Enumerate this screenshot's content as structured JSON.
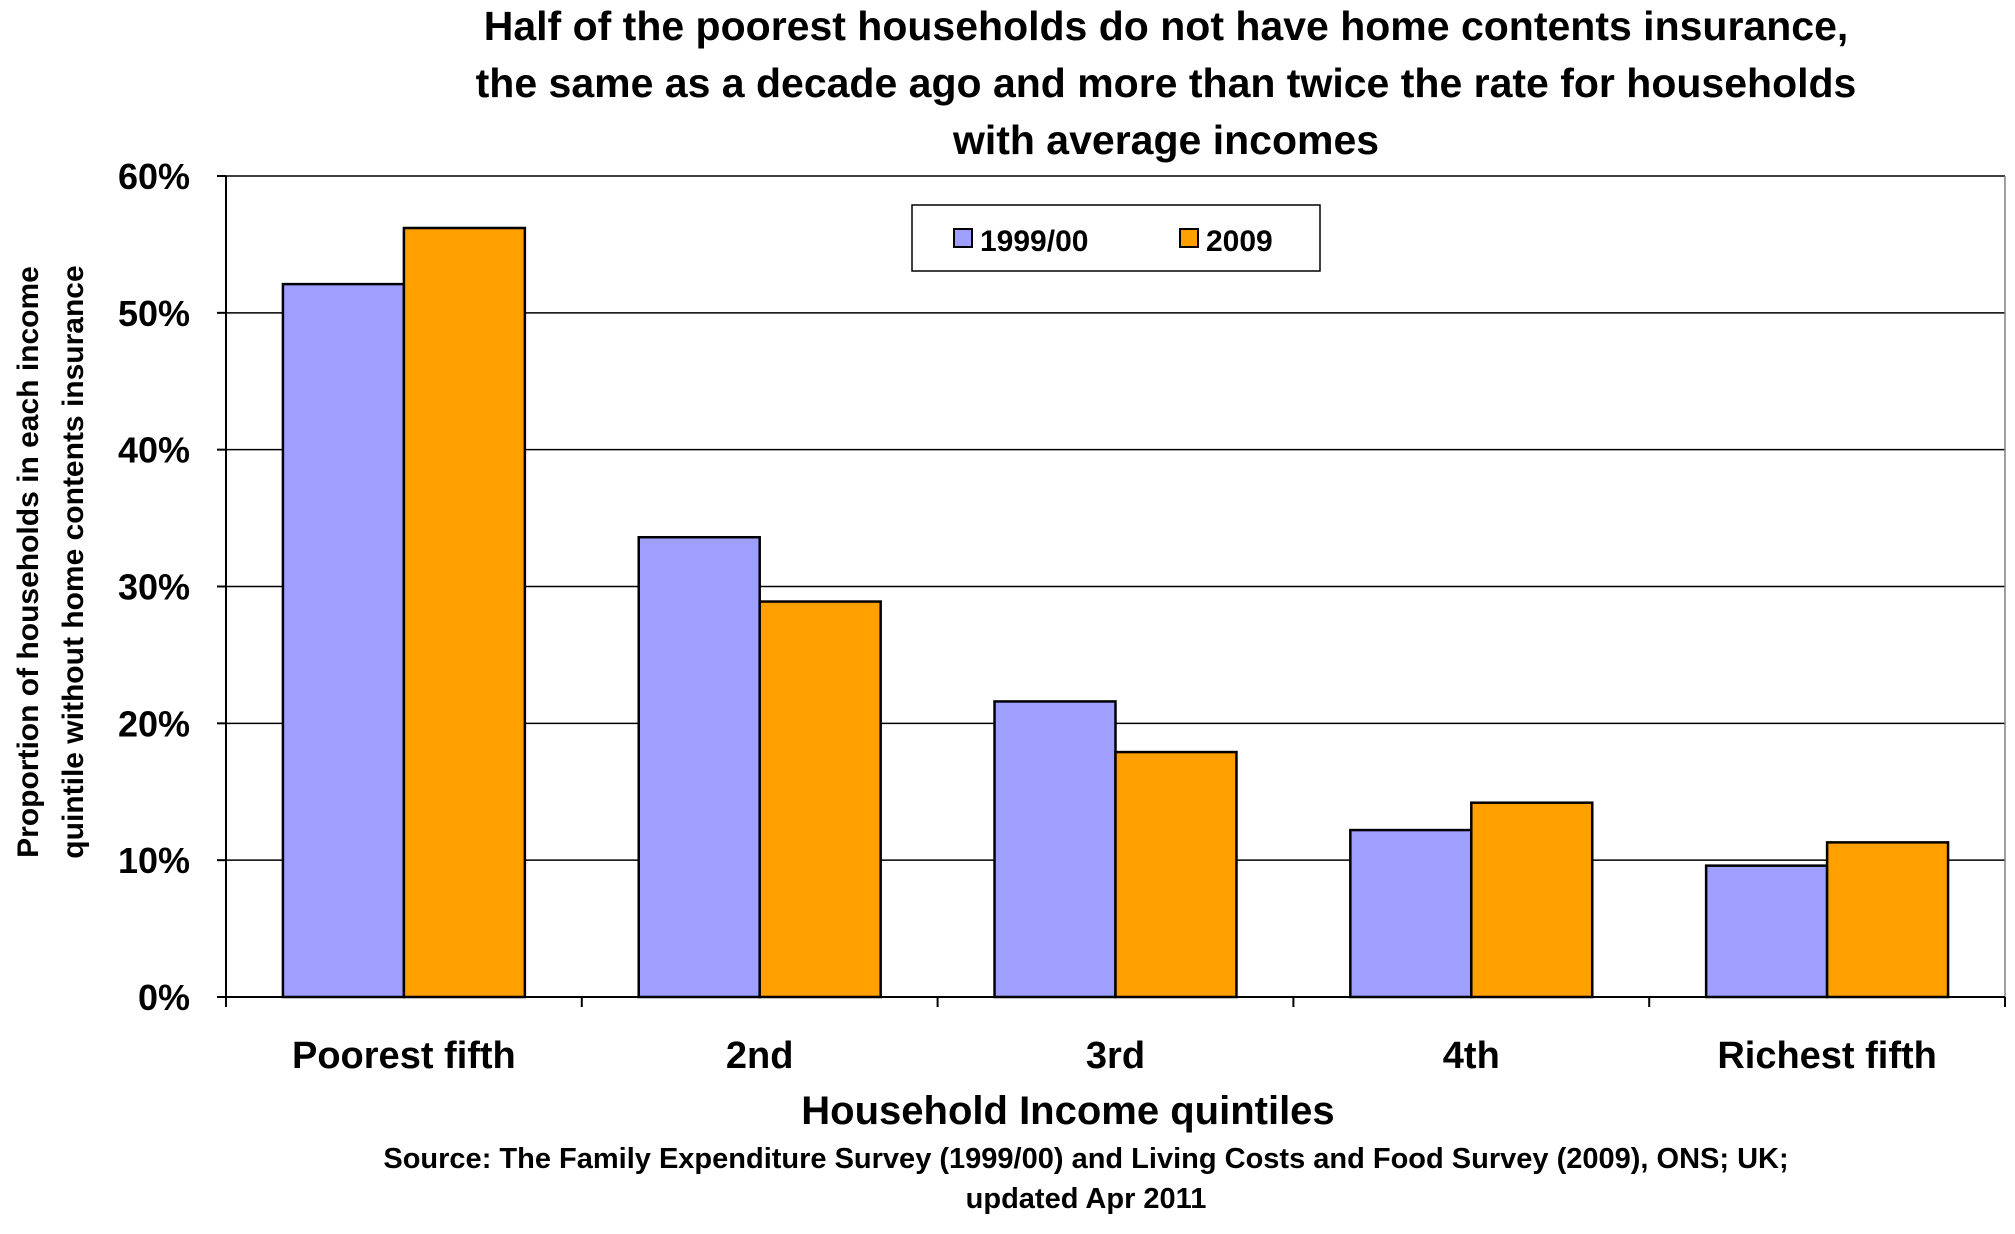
{
  "chart_data": {
    "type": "bar",
    "title_lines": [
      "Half of the poorest households do not have home contents insurance,",
      "the same as a decade ago and more than twice the rate for households",
      "with average incomes"
    ],
    "xlabel": "Household Income quintiles",
    "ylabel_lines": [
      "Proportion of households in each income",
      "quintile without home contents insurance"
    ],
    "source_lines": [
      "Source: The Family Expenditure Survey (1999/00) and Living Costs and Food Survey (2009), ONS; UK;",
      "updated Apr 2011"
    ],
    "categories": [
      "Poorest fifth",
      "2nd",
      "3rd",
      "4th",
      "Richest fifth"
    ],
    "series": [
      {
        "name": "1999/00",
        "color": "#9f9fff",
        "values": [
          52.1,
          33.6,
          21.6,
          12.2,
          9.6
        ]
      },
      {
        "name": "2009",
        "color": "#ff9f00",
        "values": [
          56.2,
          28.9,
          17.9,
          14.2,
          11.3
        ]
      }
    ],
    "ylim": [
      0,
      60
    ],
    "yticks": [
      0,
      10,
      20,
      30,
      40,
      50,
      60
    ],
    "ytick_labels": [
      "0%",
      "10%",
      "20%",
      "30%",
      "40%",
      "50%",
      "60%"
    ],
    "grid": true,
    "legend_position": "top-center"
  }
}
